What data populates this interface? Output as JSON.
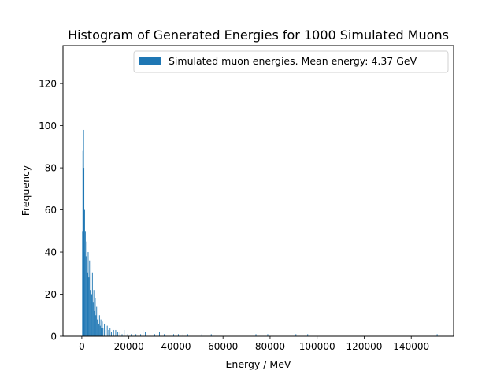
{
  "chart_data": {
    "type": "bar",
    "title": "Histogram of Generated Energies for 1000 Simulated Muons",
    "xlabel": "Energy / MeV",
    "ylabel": "Frequency",
    "xlim": [
      -8000,
      158000
    ],
    "ylim": [
      0,
      138
    ],
    "x_ticks": [
      0,
      20000,
      40000,
      60000,
      80000,
      100000,
      120000,
      140000
    ],
    "x_tick_labels": [
      "0",
      "20000",
      "40000",
      "60000",
      "80000",
      "100000",
      "120000",
      "140000"
    ],
    "y_ticks": [
      0,
      20,
      40,
      60,
      80,
      100,
      120
    ],
    "y_tick_labels": [
      "0",
      "20",
      "40",
      "60",
      "80",
      "100",
      "120"
    ],
    "grid": false,
    "legend_position": "top-right",
    "series": [
      {
        "name": "Simulated muon energies. Mean energy: 4.37 GeV",
        "color": "#1f77b4",
        "bin_width": 300,
        "bins": [
          [
            300,
            50
          ],
          [
            450,
            88
          ],
          [
            600,
            65
          ],
          [
            750,
            98
          ],
          [
            900,
            80
          ],
          [
            1050,
            40
          ],
          [
            1200,
            60
          ],
          [
            1500,
            50
          ],
          [
            1800,
            38
          ],
          [
            2100,
            45
          ],
          [
            2400,
            30
          ],
          [
            2700,
            40
          ],
          [
            3000,
            28
          ],
          [
            3300,
            36
          ],
          [
            3600,
            22
          ],
          [
            3900,
            34
          ],
          [
            4200,
            20
          ],
          [
            4500,
            30
          ],
          [
            4800,
            16
          ],
          [
            5100,
            22
          ],
          [
            5400,
            12
          ],
          [
            5700,
            18
          ],
          [
            6000,
            10
          ],
          [
            6300,
            14
          ],
          [
            6600,
            8
          ],
          [
            6900,
            12
          ],
          [
            7200,
            6
          ],
          [
            7500,
            10
          ],
          [
            7800,
            5
          ],
          [
            8100,
            8
          ],
          [
            8400,
            4
          ],
          [
            8700,
            7
          ],
          [
            9000,
            4
          ],
          [
            9600,
            6
          ],
          [
            10200,
            3
          ],
          [
            10800,
            5
          ],
          [
            11400,
            3
          ],
          [
            12000,
            4
          ],
          [
            12600,
            2
          ],
          [
            13500,
            3
          ],
          [
            14400,
            3
          ],
          [
            15300,
            2
          ],
          [
            16200,
            2
          ],
          [
            17100,
            1
          ],
          [
            18000,
            3
          ],
          [
            19500,
            1
          ],
          [
            21000,
            1
          ],
          [
            23000,
            1
          ],
          [
            25000,
            1
          ],
          [
            26000,
            3
          ],
          [
            27000,
            2
          ],
          [
            29000,
            1
          ],
          [
            31000,
            1
          ],
          [
            33000,
            2
          ],
          [
            35000,
            1
          ],
          [
            37000,
            1
          ],
          [
            39000,
            1
          ],
          [
            41000,
            1
          ],
          [
            43000,
            1
          ],
          [
            45000,
            1
          ],
          [
            51000,
            1
          ],
          [
            55000,
            1
          ],
          [
            74000,
            1
          ],
          [
            79000,
            1
          ],
          [
            91000,
            1
          ],
          [
            96000,
            1
          ],
          [
            151000,
            1
          ]
        ]
      }
    ]
  }
}
